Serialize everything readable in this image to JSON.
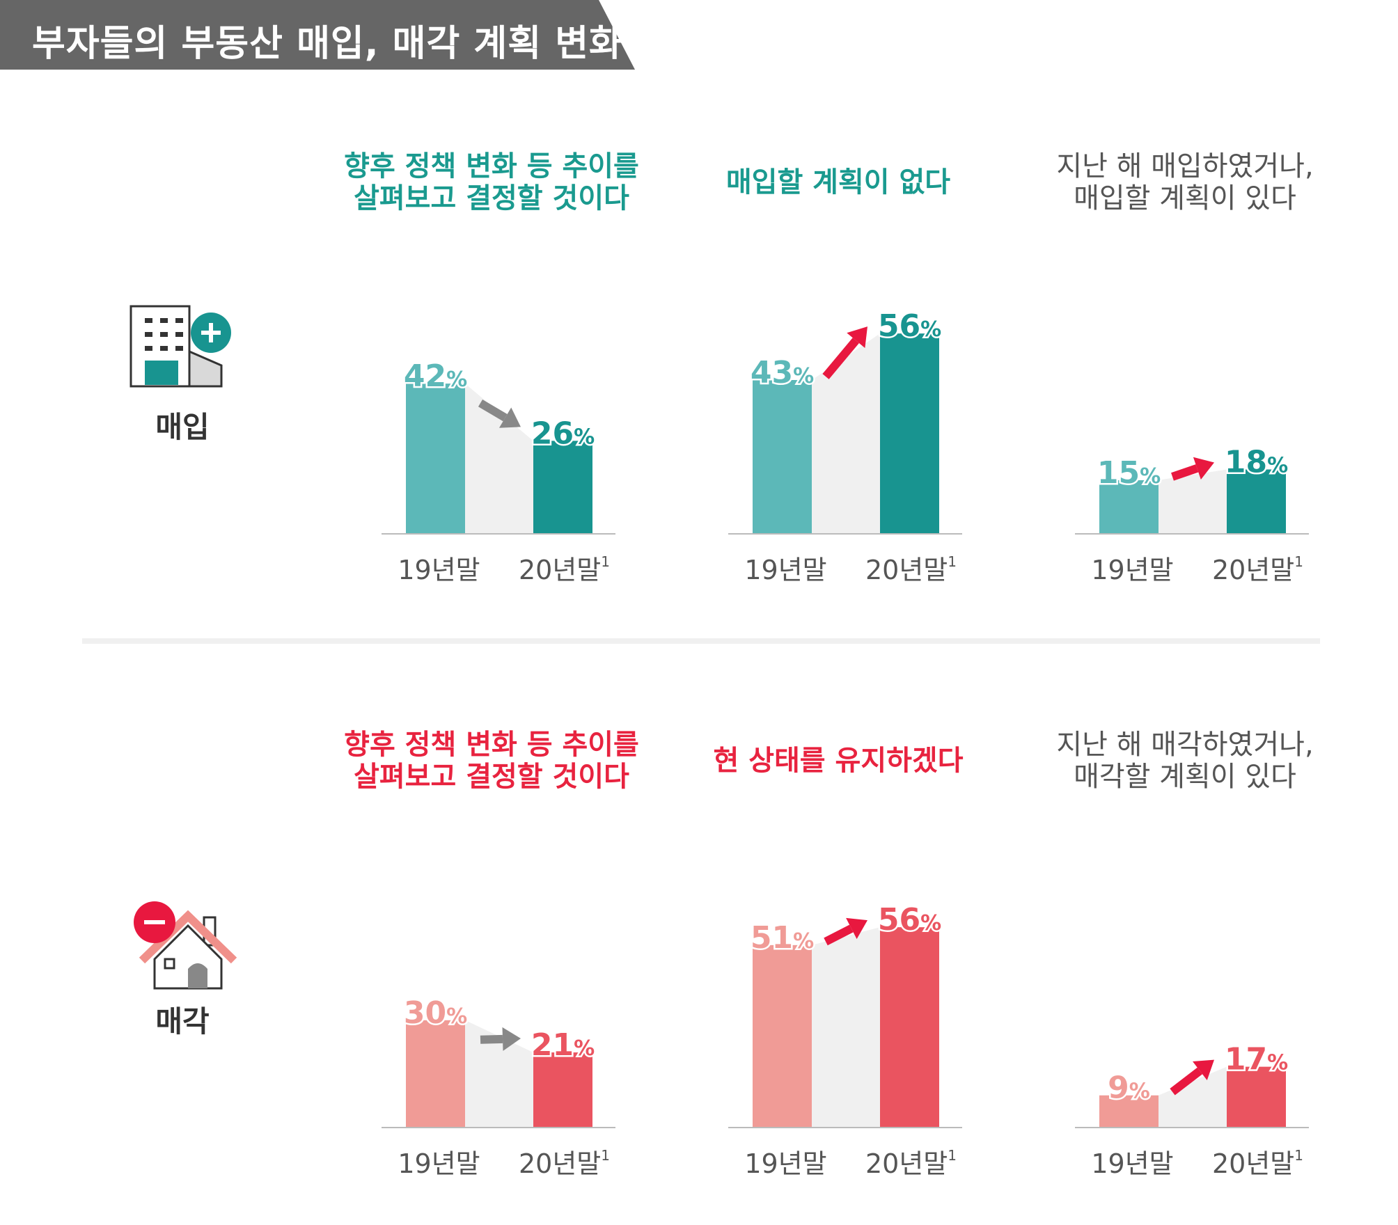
{
  "title": "부자들의 부동산 매입, 매각 계획 변화",
  "colors": {
    "teal_light": "#5cb8b8",
    "teal_dark": "#189490",
    "pink_light": "#f09b96",
    "pink_dark": "#ea5460",
    "teal_text": "#1a9a8f",
    "red_text": "#e8233f",
    "gray_text": "#555555",
    "arrow_red": "#e8183f",
    "arrow_gray": "#888888",
    "connector": "#f0f0f0",
    "banner": "#666666"
  },
  "sections": [
    {
      "key": "buy",
      "label": "매입",
      "icon": "building-plus-icon"
    },
    {
      "key": "sell",
      "label": "매각",
      "icon": "house-minus-icon"
    }
  ],
  "percent_sign": "%",
  "superscript": "1",
  "chart_data": [
    {
      "type": "bar",
      "section": "매입",
      "title_lines": [
        "향후 정책 변화 등 추이를",
        "살펴보고 결정할 것이다"
      ],
      "categories": [
        "19년말",
        "20년말"
      ],
      "values": [
        42,
        26
      ],
      "unit": "%",
      "trend": "down"
    },
    {
      "type": "bar",
      "section": "매입",
      "title_lines": [
        "매입할 계획이 없다"
      ],
      "categories": [
        "19년말",
        "20년말"
      ],
      "values": [
        43,
        56
      ],
      "unit": "%",
      "trend": "up"
    },
    {
      "type": "bar",
      "section": "매입",
      "title_lines": [
        "지난 해 매입하였거나,",
        "매입할 계획이 있다"
      ],
      "categories": [
        "19년말",
        "20년말"
      ],
      "values": [
        15,
        18
      ],
      "unit": "%",
      "trend": "up"
    },
    {
      "type": "bar",
      "section": "매각",
      "title_lines": [
        "향후 정책 변화 등 추이를",
        "살펴보고 결정할 것이다"
      ],
      "categories": [
        "19년말",
        "20년말"
      ],
      "values": [
        30,
        21
      ],
      "unit": "%",
      "trend": "down"
    },
    {
      "type": "bar",
      "section": "매각",
      "title_lines": [
        "현 상태를 유지하겠다"
      ],
      "categories": [
        "19년말",
        "20년말"
      ],
      "values": [
        51,
        56
      ],
      "unit": "%",
      "trend": "up"
    },
    {
      "type": "bar",
      "section": "매각",
      "title_lines": [
        "지난 해 매각하였거나,",
        "매각할 계획이 있다"
      ],
      "categories": [
        "19년말",
        "20년말"
      ],
      "values": [
        9,
        17
      ],
      "unit": "%",
      "trend": "up"
    }
  ]
}
